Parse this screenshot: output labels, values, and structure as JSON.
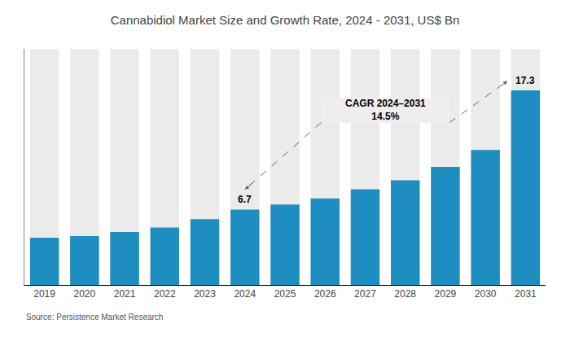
{
  "chart_data": {
    "type": "bar",
    "title": "Cannabidiol Market Size and Growth Rate, 2024 - 2031, US$ Bn",
    "categories": [
      "2019",
      "2020",
      "2021",
      "2022",
      "2023",
      "2024",
      "2025",
      "2026",
      "2027",
      "2028",
      "2029",
      "2030",
      "2031"
    ],
    "values": [
      4.2,
      4.35,
      4.7,
      5.1,
      5.85,
      6.7,
      7.15,
      7.7,
      8.5,
      9.3,
      10.5,
      12.0,
      17.3
    ],
    "color": "#1e8dbf",
    "ylim": [
      0,
      21.0
    ],
    "tick_labels": "x",
    "grid": false,
    "annotations": [
      {
        "text": "6.7",
        "category": "2024"
      },
      {
        "text": "17.3",
        "category": "2031"
      }
    ],
    "callout": {
      "lines": [
        "CAGR 2024–2031",
        "14.5%"
      ],
      "from": [
        "2024",
        "2031"
      ]
    },
    "source": "Source: Persistence Market Research"
  }
}
